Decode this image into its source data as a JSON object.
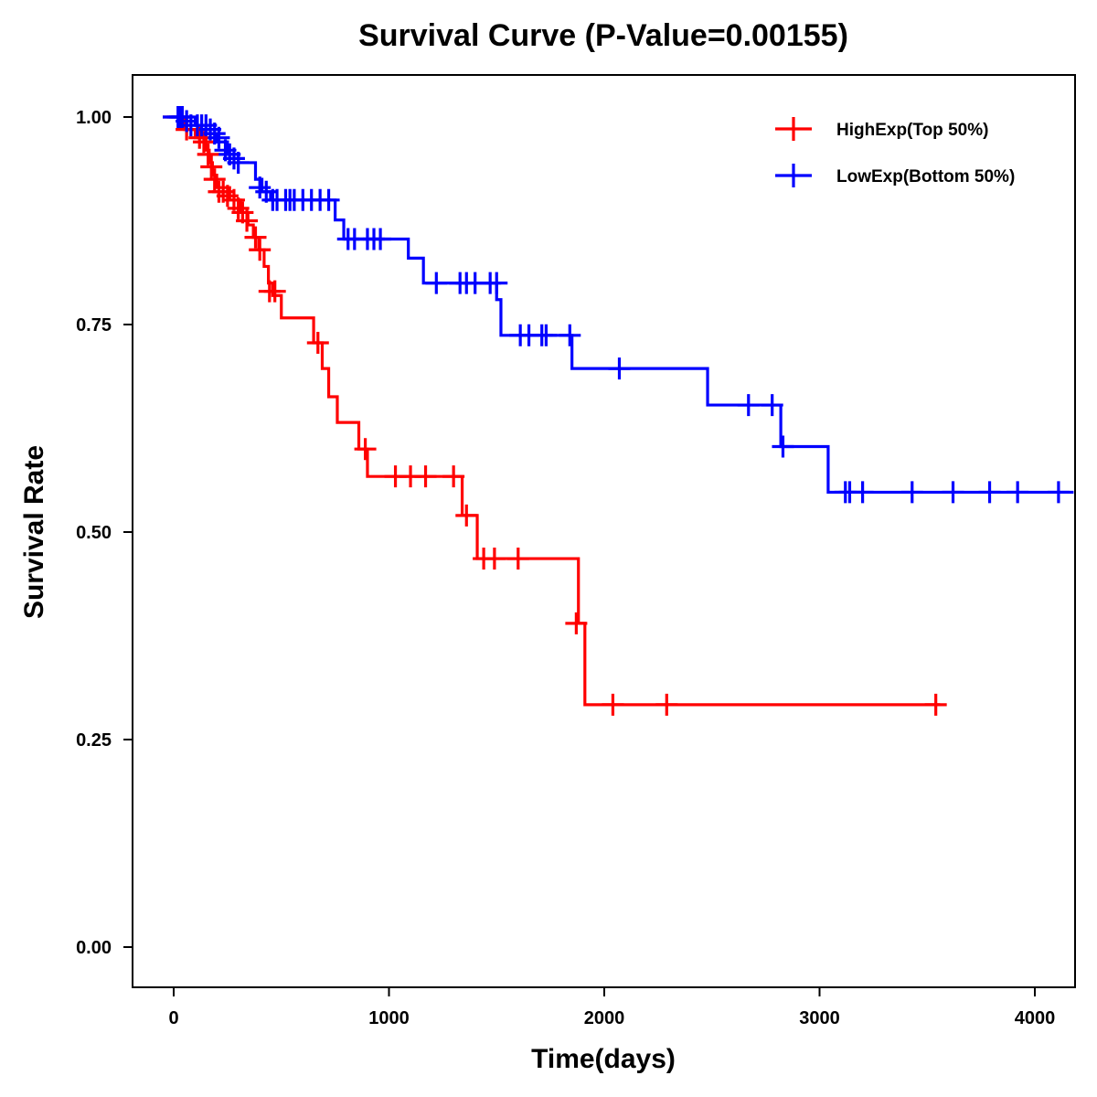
{
  "chart_data": {
    "type": "line",
    "subtype": "kaplan-meier step",
    "title": "Survival Curve (P-Value=0.00155)",
    "xlabel": "Time(days)",
    "ylabel": "Survival Rate",
    "xlim": [
      -200,
      4180
    ],
    "ylim": [
      -0.05,
      1.05
    ],
    "x_ticks": [
      0,
      1000,
      2000,
      3000,
      4000
    ],
    "x_tick_labels": [
      "0",
      "1000",
      "2000",
      "3000",
      "4000"
    ],
    "y_ticks": [
      0,
      0.25,
      0.5,
      0.75,
      1.0
    ],
    "y_tick_labels": [
      "0.00",
      "0.25",
      "0.50",
      "0.75",
      "1.00"
    ],
    "grid": false,
    "legend_position": "top-right",
    "series": [
      {
        "name": "HighExp(Top 50%)",
        "color": "#ff0000",
        "steps": [
          [
            0,
            1.0
          ],
          [
            50,
            0.985
          ],
          [
            100,
            0.975
          ],
          [
            150,
            0.96
          ],
          [
            165,
            0.945
          ],
          [
            180,
            0.93
          ],
          [
            200,
            0.915
          ],
          [
            260,
            0.9
          ],
          [
            310,
            0.885
          ],
          [
            345,
            0.87
          ],
          [
            370,
            0.855
          ],
          [
            395,
            0.84
          ],
          [
            420,
            0.82
          ],
          [
            440,
            0.8
          ],
          [
            460,
            0.785
          ],
          [
            500,
            0.758
          ],
          [
            650,
            0.728
          ],
          [
            690,
            0.697
          ],
          [
            720,
            0.663
          ],
          [
            760,
            0.632
          ],
          [
            860,
            0.6
          ],
          [
            900,
            0.567
          ],
          [
            1340,
            0.52
          ],
          [
            1410,
            0.468
          ],
          [
            1880,
            0.39
          ],
          [
            1910,
            0.292
          ]
        ],
        "end_time": 3560,
        "censor": [
          [
            60,
            0.985
          ],
          [
            120,
            0.975
          ],
          [
            140,
            0.97
          ],
          [
            160,
            0.955
          ],
          [
            175,
            0.94
          ],
          [
            190,
            0.925
          ],
          [
            210,
            0.91
          ],
          [
            230,
            0.91
          ],
          [
            250,
            0.905
          ],
          [
            280,
            0.9
          ],
          [
            300,
            0.89
          ],
          [
            320,
            0.885
          ],
          [
            340,
            0.875
          ],
          [
            380,
            0.855
          ],
          [
            400,
            0.84
          ],
          [
            445,
            0.79
          ],
          [
            470,
            0.79
          ],
          [
            670,
            0.728
          ],
          [
            890,
            0.6
          ],
          [
            1030,
            0.567
          ],
          [
            1100,
            0.567
          ],
          [
            1170,
            0.567
          ],
          [
            1300,
            0.567
          ],
          [
            1360,
            0.52
          ],
          [
            1440,
            0.468
          ],
          [
            1490,
            0.468
          ],
          [
            1600,
            0.468
          ],
          [
            1870,
            0.39
          ],
          [
            2040,
            0.292
          ],
          [
            2290,
            0.292
          ],
          [
            3540,
            0.292
          ]
        ]
      },
      {
        "name": "LowExp(Bottom 50%)",
        "color": "#0000ff",
        "steps": [
          [
            0,
            1.0
          ],
          [
            100,
            0.99
          ],
          [
            150,
            0.98
          ],
          [
            200,
            0.97
          ],
          [
            250,
            0.955
          ],
          [
            300,
            0.945
          ],
          [
            380,
            0.925
          ],
          [
            410,
            0.91
          ],
          [
            450,
            0.9
          ],
          [
            750,
            0.876
          ],
          [
            790,
            0.853
          ],
          [
            1090,
            0.83
          ],
          [
            1160,
            0.8
          ],
          [
            1500,
            0.78
          ],
          [
            1520,
            0.737
          ],
          [
            1850,
            0.697
          ],
          [
            2480,
            0.653
          ],
          [
            2820,
            0.603
          ],
          [
            3040,
            0.548
          ]
        ],
        "end_time": 4180,
        "censor": [
          [
            20,
            1.0
          ],
          [
            30,
            1.0
          ],
          [
            40,
            1.0
          ],
          [
            60,
            0.995
          ],
          [
            80,
            0.99
          ],
          [
            110,
            0.99
          ],
          [
            130,
            0.99
          ],
          [
            150,
            0.99
          ],
          [
            170,
            0.985
          ],
          [
            190,
            0.98
          ],
          [
            210,
            0.975
          ],
          [
            240,
            0.96
          ],
          [
            260,
            0.955
          ],
          [
            280,
            0.95
          ],
          [
            300,
            0.945
          ],
          [
            400,
            0.915
          ],
          [
            430,
            0.91
          ],
          [
            460,
            0.9
          ],
          [
            480,
            0.9
          ],
          [
            520,
            0.9
          ],
          [
            540,
            0.9
          ],
          [
            560,
            0.9
          ],
          [
            600,
            0.9
          ],
          [
            640,
            0.9
          ],
          [
            680,
            0.9
          ],
          [
            720,
            0.9
          ],
          [
            810,
            0.853
          ],
          [
            840,
            0.853
          ],
          [
            900,
            0.853
          ],
          [
            930,
            0.853
          ],
          [
            960,
            0.853
          ],
          [
            1220,
            0.8
          ],
          [
            1330,
            0.8
          ],
          [
            1360,
            0.8
          ],
          [
            1400,
            0.8
          ],
          [
            1470,
            0.8
          ],
          [
            1500,
            0.8
          ],
          [
            1610,
            0.737
          ],
          [
            1650,
            0.737
          ],
          [
            1710,
            0.737
          ],
          [
            1730,
            0.737
          ],
          [
            1840,
            0.737
          ],
          [
            2070,
            0.697
          ],
          [
            2670,
            0.653
          ],
          [
            2780,
            0.653
          ],
          [
            2830,
            0.603
          ],
          [
            3120,
            0.548
          ],
          [
            3140,
            0.548
          ],
          [
            3200,
            0.548
          ],
          [
            3430,
            0.548
          ],
          [
            3620,
            0.548
          ],
          [
            3790,
            0.548
          ],
          [
            3920,
            0.548
          ],
          [
            4110,
            0.548
          ]
        ]
      }
    ]
  }
}
